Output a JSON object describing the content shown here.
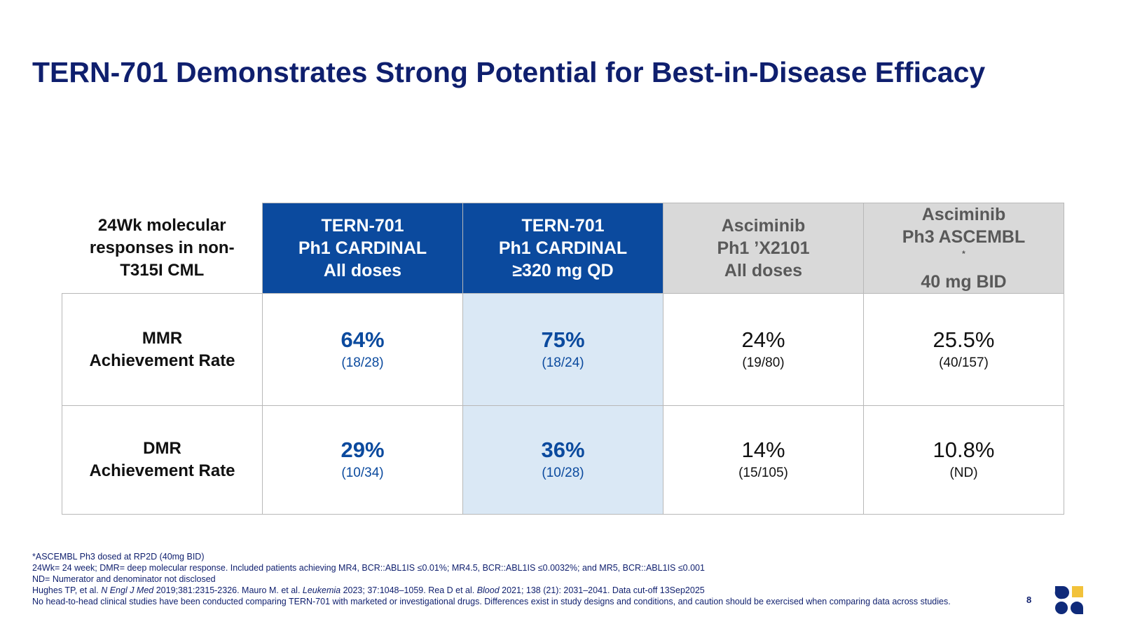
{
  "title": "TERN-701 Demonstrates Strong Potential for Best-in-Disease Efficacy",
  "table": {
    "corner_label": [
      "24Wk molecular",
      "responses in non-",
      "T315I CML"
    ],
    "columns": [
      {
        "lines": [
          "TERN-701",
          "Ph1 CARDINAL",
          "All doses"
        ],
        "sup": "",
        "style": "blue"
      },
      {
        "lines": [
          "TERN-701",
          "Ph1 CARDINAL",
          "≥320 mg QD"
        ],
        "sup": "",
        "style": "blue"
      },
      {
        "lines": [
          "Asciminib",
          "Ph1 ’X2101",
          "All doses"
        ],
        "sup": "",
        "style": "grey"
      },
      {
        "lines": [
          "Asciminib",
          "Ph3 ASCEMBL",
          "40 mg BID"
        ],
        "sup": "*",
        "style": "grey"
      }
    ],
    "rows": [
      {
        "label": [
          "MMR",
          "Achievement Rate"
        ],
        "cells": [
          {
            "pct": "64%",
            "frac": "(18/28)"
          },
          {
            "pct": "75%",
            "frac": "(18/24)"
          },
          {
            "pct": "24%",
            "frac": "(19/80)"
          },
          {
            "pct": "25.5%",
            "frac": "(40/157)"
          }
        ]
      },
      {
        "label": [
          "DMR",
          "Achievement Rate"
        ],
        "cells": [
          {
            "pct": "29%",
            "frac": "(10/34)"
          },
          {
            "pct": "36%",
            "frac": "(10/28)"
          },
          {
            "pct": "14%",
            "frac": "(15/105)"
          },
          {
            "pct": "10.8%",
            "frac": "(ND)"
          }
        ]
      }
    ]
  },
  "footnotes": {
    "line1": "*ASCEMBL Ph3 dosed at RP2D (40mg BID)",
    "line2": "24Wk= 24 week; DMR= deep molecular response. Included patients achieving MR4, BCR::ABL1IS ≤0.01%; MR4.5, BCR::ABL1IS ≤0.0032%; and MR5, BCR::ABL1IS ≤0.001",
    "line3": "ND= Numerator and denominator not disclosed",
    "line4": {
      "a": "Hughes TP, et al. ",
      "b": "N Engl J Med",
      "c": " 2019;381:2315-2326. Mauro M. et al.  ",
      "d": "Leukemia",
      "e": " 2023; 37:1048–1059. Rea D et al. ",
      "f": "Blood",
      "g": " 2021; 138 (21): 2031–2041. Data cut-off 13Sep2025"
    },
    "line5": "No head-to-head clinical studies have been conducted comparing TERN-701 with marketed or investigational drugs. Differences exist in study designs and conditions, and caution should be exercised when comparing data across studies."
  },
  "page_number": "8",
  "colors": {
    "title": "#0f1f6e",
    "header_blue": "#0b4a9e",
    "header_grey": "#d9d9d9",
    "highlight": "#dae8f5",
    "logo_navy": "#0f2a7a",
    "logo_gold": "#f2c23a"
  }
}
